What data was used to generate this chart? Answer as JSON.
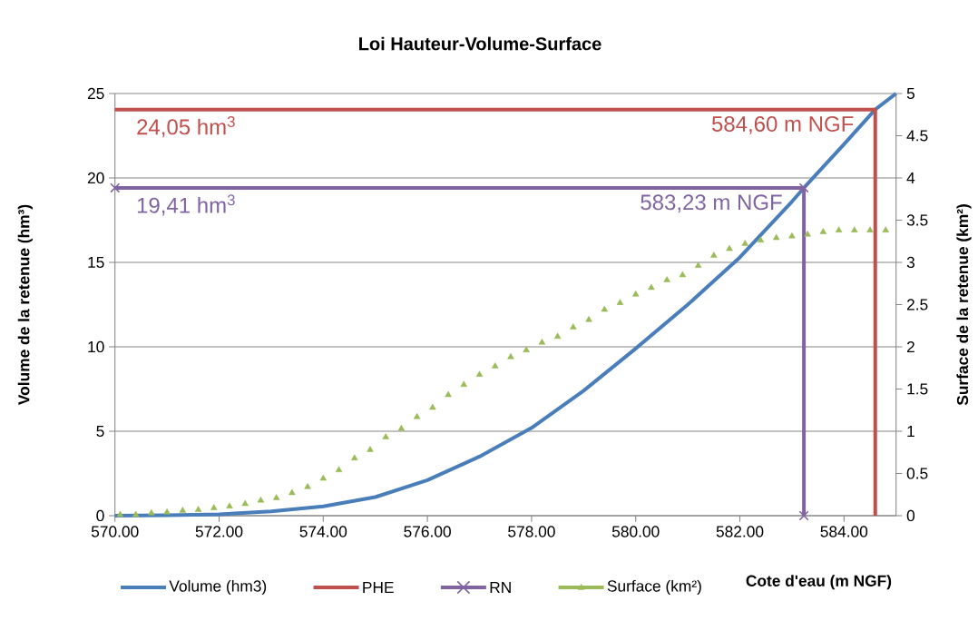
{
  "chart_data": {
    "type": "line",
    "title": "Loi Hauteur-Volume-Surface",
    "xlabel": "Cote d'eau (m NGF)",
    "ylabel": "Volume de la retenue (hm³)",
    "y2label": "Surface de la retenue (km²)",
    "xlim": [
      570,
      585
    ],
    "xticks": [
      {
        "value": 570,
        "label": "570.00"
      },
      {
        "value": 572,
        "label": "572.00"
      },
      {
        "value": 574,
        "label": "574.00"
      },
      {
        "value": 576,
        "label": "576.00"
      },
      {
        "value": 578,
        "label": "578.00"
      },
      {
        "value": 580,
        "label": "580.00"
      },
      {
        "value": 582,
        "label": "582.00"
      },
      {
        "value": 584,
        "label": "584.00"
      }
    ],
    "ylim": [
      0,
      25
    ],
    "yticks": [
      0,
      5,
      10,
      15,
      20,
      25
    ],
    "y2lim": [
      0,
      5
    ],
    "y2ticks": [
      0,
      0.5,
      1,
      1.5,
      2,
      2.5,
      3,
      3.5,
      4,
      4.5,
      5
    ],
    "grid": "y",
    "legend": "bottom",
    "series": [
      {
        "name": "Volume (hm3)",
        "color": "#4a7ebb",
        "x": [
          570,
          571,
          572,
          573,
          574,
          575,
          576,
          577,
          578,
          579,
          580,
          581,
          582,
          583,
          583.23,
          584,
          584.6,
          585
        ],
        "values": [
          0,
          0.02,
          0.08,
          0.25,
          0.55,
          1.1,
          2.1,
          3.5,
          5.2,
          7.4,
          9.9,
          12.5,
          15.3,
          18.6,
          19.41,
          22.0,
          24.05,
          25
        ]
      },
      {
        "name": "PHE",
        "color": "#c0504d",
        "x": [
          570,
          584.6,
          584.6
        ],
        "values": [
          24.05,
          24.05,
          0
        ]
      },
      {
        "name": "RN",
        "color": "#8064a2",
        "marker": "cross",
        "x": [
          570,
          583.23,
          583.23
        ],
        "values": [
          19.41,
          19.41,
          0
        ]
      },
      {
        "name": "Surface (km²)",
        "type": "scatter",
        "color": "#9bbb59",
        "marker": "triangle",
        "axis": "y2",
        "x": [
          570.1,
          570.4,
          570.7,
          571.0,
          571.3,
          571.6,
          571.9,
          572.2,
          572.5,
          572.8,
          573.1,
          573.4,
          573.7,
          574.0,
          574.3,
          574.6,
          574.9,
          575.2,
          575.5,
          575.8,
          576.1,
          576.4,
          576.7,
          577.0,
          577.3,
          577.6,
          577.9,
          578.2,
          578.5,
          578.8,
          579.1,
          579.4,
          579.7,
          580.0,
          580.3,
          580.6,
          580.9,
          581.2,
          581.5,
          581.8,
          582.1,
          582.4,
          582.7,
          583.0,
          583.3,
          583.6,
          583.9,
          584.2,
          584.5,
          584.8
        ],
        "values": [
          0.01,
          0.01,
          0.03,
          0.04,
          0.06,
          0.07,
          0.09,
          0.11,
          0.14,
          0.18,
          0.21,
          0.27,
          0.34,
          0.44,
          0.54,
          0.68,
          0.78,
          0.93,
          1.03,
          1.17,
          1.28,
          1.43,
          1.55,
          1.67,
          1.77,
          1.88,
          1.96,
          2.05,
          2.12,
          2.23,
          2.32,
          2.44,
          2.52,
          2.62,
          2.7,
          2.79,
          2.85,
          2.96,
          3.08,
          3.16,
          3.22,
          3.26,
          3.29,
          3.31,
          3.33,
          3.36,
          3.38,
          3.38,
          3.38,
          3.38
        ]
      }
    ],
    "annotations": [
      {
        "text": "24,05 hm$^{3}$",
        "x": 570,
        "y": 24.05
      },
      {
        "text": "584,60 m NGF",
        "x": 584.6,
        "y": 24.05
      },
      {
        "text": "19,41 hm$^{3}$",
        "x": 570,
        "y": 19.41
      },
      {
        "text": "583,23 m NGF",
        "x": 583.23,
        "y": 19.41
      }
    ]
  }
}
